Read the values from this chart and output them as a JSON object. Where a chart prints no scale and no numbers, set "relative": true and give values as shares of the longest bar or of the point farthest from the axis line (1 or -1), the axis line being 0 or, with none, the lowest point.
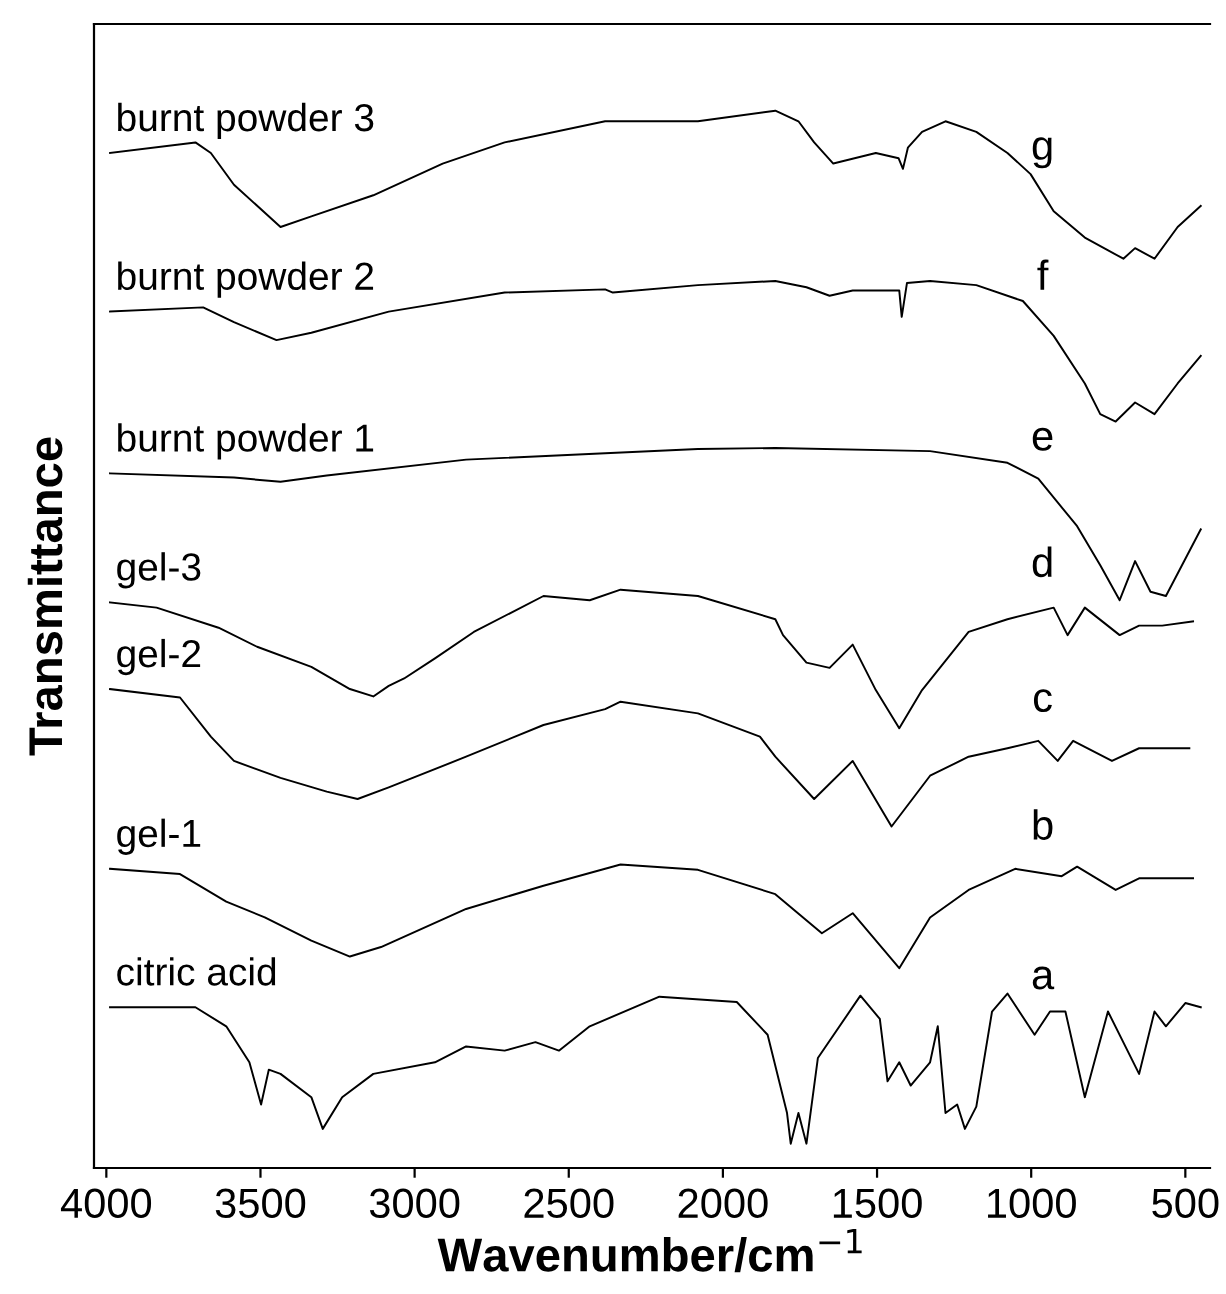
{
  "chart_data": {
    "type": "line",
    "relative": true,
    "xlabel": "Wavenumber/cm$^{−1}$",
    "ylabel": "Transmittance",
    "xlim": [
      4040,
      420
    ],
    "xticks": [
      4000,
      3500,
      3000,
      2500,
      2000,
      1500,
      1000,
      500
    ],
    "grid": false,
    "legend": false,
    "line_style": "solid",
    "series": [
      {
        "name": "burnt powder 3",
        "color": "#000000",
        "x": [
          3988,
          3711,
          3661,
          3586,
          3435,
          3335,
          3134,
          2909,
          2708,
          2382,
          2081,
          1830,
          1755,
          1704,
          1642,
          1504,
          1430,
          1416,
          1400,
          1354,
          1278,
          1178,
          1077,
          1002,
          927,
          826,
          701,
          663,
          600,
          525,
          450
        ],
        "values": [
          0.96,
          0.97,
          0.96,
          0.93,
          0.89,
          0.9,
          0.92,
          0.95,
          0.97,
          0.99,
          0.99,
          1.0,
          0.99,
          0.97,
          0.95,
          0.96,
          0.955,
          0.945,
          0.965,
          0.98,
          0.99,
          0.98,
          0.96,
          0.94,
          0.905,
          0.88,
          0.86,
          0.87,
          0.86,
          0.89,
          0.91
        ]
      },
      {
        "name": "burnt powder 2",
        "color": "#000000",
        "x": [
          3988,
          3686,
          3586,
          3448,
          3335,
          3084,
          2708,
          2382,
          2357,
          2081,
          1830,
          1729,
          1654,
          1579,
          1428,
          1420,
          1403,
          1328,
          1178,
          1027,
          927,
          826,
          776,
          726,
          663,
          600,
          525,
          450
        ],
        "values": [
          0.81,
          0.814,
          0.8,
          0.783,
          0.79,
          0.81,
          0.828,
          0.831,
          0.828,
          0.835,
          0.839,
          0.833,
          0.825,
          0.83,
          0.83,
          0.805,
          0.837,
          0.839,
          0.835,
          0.82,
          0.787,
          0.742,
          0.713,
          0.706,
          0.724,
          0.713,
          0.742,
          0.768
        ]
      },
      {
        "name": "burnt powder 1",
        "color": "#000000",
        "x": [
          3988,
          3586,
          3435,
          3285,
          2833,
          2382,
          2081,
          1830,
          1328,
          1077,
          977,
          851,
          776,
          713,
          663,
          613,
          563,
          450
        ],
        "values": [
          0.657,
          0.653,
          0.649,
          0.655,
          0.67,
          0.676,
          0.68,
          0.681,
          0.678,
          0.667,
          0.652,
          0.607,
          0.57,
          0.537,
          0.574,
          0.545,
          0.541,
          0.604
        ]
      },
      {
        "name": "gel-3",
        "color": "#000000",
        "x": [
          3988,
          3837,
          3636,
          3511,
          3335,
          3210,
          3134,
          3084,
          3034,
          2934,
          2808,
          2582,
          2432,
          2332,
          2081,
          1830,
          1805,
          1729,
          1654,
          1579,
          1504,
          1428,
          1354,
          1203,
          1077,
          927,
          882,
          826,
          713,
          650,
          575,
          475
        ],
        "values": [
          0.535,
          0.53,
          0.511,
          0.493,
          0.474,
          0.453,
          0.446,
          0.456,
          0.463,
          0.482,
          0.507,
          0.541,
          0.537,
          0.547,
          0.541,
          0.519,
          0.504,
          0.478,
          0.473,
          0.495,
          0.452,
          0.416,
          0.452,
          0.507,
          0.519,
          0.53,
          0.504,
          0.53,
          0.504,
          0.513,
          0.513,
          0.517
        ]
      },
      {
        "name": "gel-2",
        "color": "#000000",
        "x": [
          3988,
          3761,
          3661,
          3586,
          3435,
          3285,
          3185,
          3084,
          2833,
          2582,
          2382,
          2332,
          2081,
          1880,
          1830,
          1704,
          1579,
          1453,
          1328,
          1203,
          1077,
          977,
          914,
          864,
          738,
          650,
          487
        ],
        "values": [
          0.453,
          0.445,
          0.408,
          0.385,
          0.369,
          0.356,
          0.349,
          0.36,
          0.389,
          0.419,
          0.434,
          0.441,
          0.43,
          0.408,
          0.389,
          0.349,
          0.385,
          0.323,
          0.371,
          0.389,
          0.397,
          0.404,
          0.385,
          0.404,
          0.385,
          0.397,
          0.397
        ]
      },
      {
        "name": "gel-1",
        "color": "#000000",
        "x": [
          3988,
          3761,
          3611,
          3486,
          3335,
          3210,
          3109,
          2833,
          2582,
          2332,
          2081,
          1830,
          1679,
          1579,
          1428,
          1328,
          1203,
          1052,
          901,
          851,
          726,
          650,
          475
        ],
        "values": [
          0.283,
          0.278,
          0.252,
          0.237,
          0.215,
          0.2,
          0.209,
          0.245,
          0.267,
          0.287,
          0.282,
          0.259,
          0.222,
          0.241,
          0.189,
          0.237,
          0.263,
          0.283,
          0.276,
          0.285,
          0.263,
          0.274,
          0.274
        ]
      },
      {
        "name": "citric acid",
        "color": "#000000",
        "x": [
          3988,
          3711,
          3611,
          3536,
          3498,
          3473,
          3435,
          3335,
          3298,
          3235,
          3134,
          2934,
          2833,
          2708,
          2608,
          2532,
          2432,
          2206,
          1955,
          1855,
          1792,
          1780,
          1755,
          1729,
          1692,
          1554,
          1491,
          1466,
          1428,
          1391,
          1328,
          1303,
          1278,
          1240,
          1215,
          1178,
          1127,
          1077,
          989,
          939,
          889,
          826,
          751,
          650,
          600,
          563,
          500,
          450
        ],
        "values": [
          0.152,
          0.152,
          0.134,
          0.1,
          0.06,
          0.093,
          0.089,
          0.067,
          0.037,
          0.067,
          0.089,
          0.1,
          0.115,
          0.111,
          0.119,
          0.111,
          0.134,
          0.162,
          0.157,
          0.126,
          0.052,
          0.023,
          0.052,
          0.023,
          0.104,
          0.163,
          0.141,
          0.082,
          0.1,
          0.078,
          0.1,
          0.134,
          0.052,
          0.06,
          0.037,
          0.058,
          0.148,
          0.165,
          0.126,
          0.148,
          0.148,
          0.067,
          0.148,
          0.089,
          0.148,
          0.134,
          0.156,
          0.152
        ]
      }
    ],
    "annotations": [
      "g",
      "f",
      "e",
      "d",
      "c",
      "b",
      "a"
    ]
  }
}
